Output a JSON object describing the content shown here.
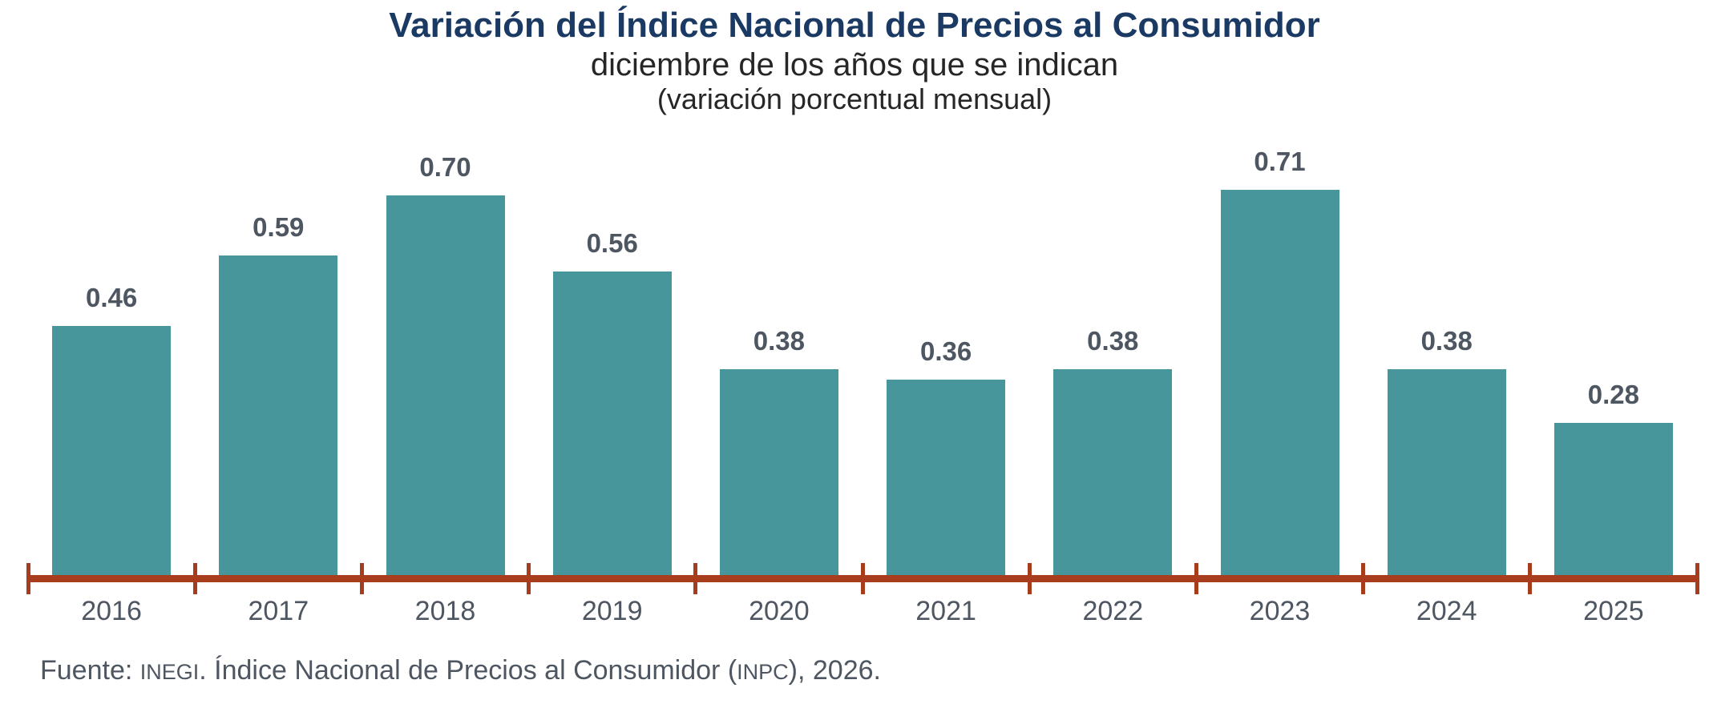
{
  "chart_data": {
    "type": "bar",
    "title": "Variación del Índice Nacional de Precios al Consumidor",
    "subtitle": "diciembre de los años que se indican",
    "note": "(variación porcentual mensual)",
    "categories": [
      "2016",
      "2017",
      "2018",
      "2019",
      "2020",
      "2021",
      "2022",
      "2023",
      "2024",
      "2025"
    ],
    "values": [
      0.46,
      0.59,
      0.7,
      0.56,
      0.38,
      0.36,
      0.38,
      0.71,
      0.38,
      0.28
    ],
    "value_labels": [
      "0.46",
      "0.59",
      "0.70",
      "0.56",
      "0.38",
      "0.36",
      "0.38",
      "0.71",
      "0.38",
      "0.28"
    ],
    "xlabel": "",
    "ylabel": "",
    "ylim": [
      0,
      0.75
    ],
    "grid": false,
    "legend": "none",
    "data_labels": "above-bars",
    "colors": {
      "bar": "#47969c",
      "axis": "#a83d1d",
      "labels": "#4d5661",
      "title": "#1b3a63",
      "subtitle": "#262626"
    }
  },
  "footer": {
    "prefix": "Fuente: ",
    "inegi": "INEGI",
    "middle": ". Índice Nacional de Precios al Consumidor (",
    "inpc": "INPC",
    "suffix": "), 2026."
  }
}
